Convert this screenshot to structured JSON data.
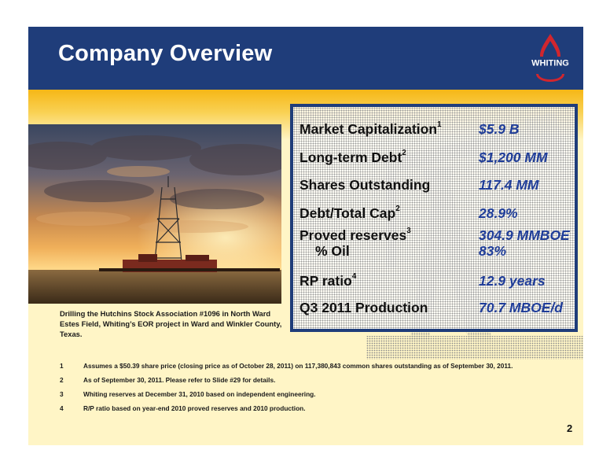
{
  "header": {
    "title": "Company Overview",
    "logo_text": "WHITING",
    "colors": {
      "brand_blue": "#1f3d7a",
      "accent_red": "#d1262e",
      "value_blue": "#1f3d99",
      "slide_yellow": "#fff5c6"
    }
  },
  "photo": {
    "caption": "Drilling the Hutchins Stock Association #1096 in North Ward Estes Field, Whiting’s EOR project in Ward and Winkler County, Texas."
  },
  "metrics": [
    {
      "label": "Market Capitalization",
      "sup": "1",
      "value": "$5.9 B"
    },
    {
      "label": "Long-term Debt",
      "sup": "2",
      "value": "$1,200 MM"
    },
    {
      "label": "Shares Outstanding",
      "sup": "",
      "value": "117.4 MM"
    },
    {
      "label": "Debt/Total Cap",
      "sup": "2",
      "value": "28.9%"
    },
    {
      "label": "Proved reserves",
      "sup": "3",
      "value": "304.9 MMBOE"
    },
    {
      "label": "% Oil",
      "sup": "",
      "value": "83%"
    },
    {
      "label": "RP ratio",
      "sup": "4",
      "value": "12.9 years"
    },
    {
      "label": "Q3 2011 Production",
      "sup": "",
      "value": "70.7 MBOE/d"
    }
  ],
  "footnotes": [
    {
      "num": "1",
      "text": "Assumes a $50.39 share price (closing price as of October 28, 2011) on 117,380,843 common shares outstanding as of September 30, 2011."
    },
    {
      "num": "2",
      "text": "As of September 30, 2011.  Please refer to Slide #29 for details."
    },
    {
      "num": "3",
      "text": "Whiting reserves at December 31, 2010 based on independent engineering."
    },
    {
      "num": "4",
      "text": "R/P ratio based on year-end 2010 proved reserves and 2010 production."
    }
  ],
  "page_number": "2"
}
